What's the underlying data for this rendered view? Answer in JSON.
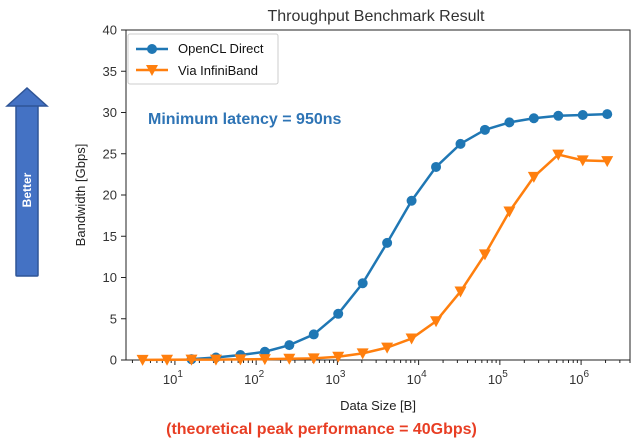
{
  "chart_data": {
    "type": "line",
    "title": "Throughput Benchmark Result",
    "xlabel": "Data Size [B]",
    "ylabel": "Bandwidth [Gbps]",
    "xscale": "log",
    "xlim": [
      2.5,
      4000000
    ],
    "ylim": [
      0,
      40
    ],
    "y_ticks": [
      0,
      5,
      10,
      15,
      20,
      25,
      30,
      35,
      40
    ],
    "x_ticks": [
      10,
      100,
      1000,
      10000,
      100000,
      1000000
    ],
    "x_tick_labels": [
      {
        "base": "10",
        "exp": "1"
      },
      {
        "base": "10",
        "exp": "2"
      },
      {
        "base": "10",
        "exp": "3"
      },
      {
        "base": "10",
        "exp": "4"
      },
      {
        "base": "10",
        "exp": "5"
      },
      {
        "base": "10",
        "exp": "6"
      }
    ],
    "grid": false,
    "legend_position": "top-left",
    "series": [
      {
        "name": "OpenCL Direct",
        "color": "#1f77b4",
        "marker": "circle",
        "x": [
          16,
          32,
          64,
          128,
          256,
          512,
          1024,
          2048,
          4096,
          8192,
          16384,
          32768,
          65536,
          131072,
          262144,
          524288,
          1048576,
          2097152
        ],
        "y": [
          0.1,
          0.3,
          0.6,
          1.0,
          1.8,
          3.1,
          5.6,
          9.3,
          14.2,
          19.3,
          23.4,
          26.2,
          27.9,
          28.8,
          29.3,
          29.6,
          29.7,
          29.8
        ]
      },
      {
        "name": "Via InfiniBand",
        "color": "#ff7f0e",
        "marker": "triangle-down",
        "x": [
          4,
          8,
          16,
          32,
          64,
          128,
          256,
          512,
          1024,
          2048,
          4096,
          8192,
          16384,
          32768,
          65536,
          131072,
          262144,
          524288,
          1048576,
          2097152
        ],
        "y": [
          0.02,
          0.03,
          0.04,
          0.05,
          0.08,
          0.1,
          0.15,
          0.2,
          0.4,
          0.8,
          1.5,
          2.6,
          4.7,
          8.3,
          12.8,
          18.0,
          22.2,
          24.9,
          24.2,
          24.1
        ]
      }
    ],
    "annotations": [
      {
        "text": "Minimum latency = 950ns",
        "color": "#2e74b5"
      }
    ]
  },
  "side_arrow": {
    "label": "Better",
    "color": "#4472c4"
  },
  "footer": {
    "text": "(theoretical peak performance = 40Gbps)",
    "color": "#e83e24"
  }
}
